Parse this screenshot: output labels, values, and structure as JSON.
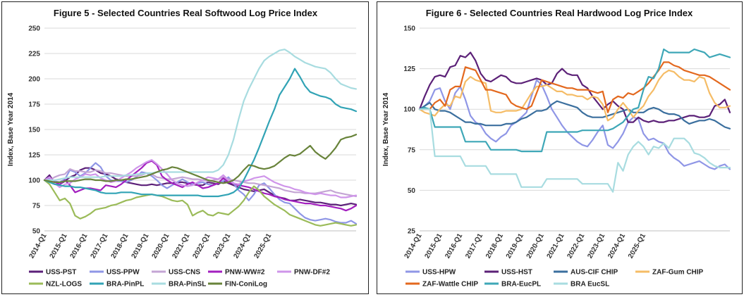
{
  "chart_data": [
    {
      "type": "line",
      "title": "Figure 5 - Selected Countries Real Softwood Log Price Index",
      "ylabel": "Index, Base Year 2014",
      "xlabel": "",
      "ylim": [
        50,
        250
      ],
      "yticks": [
        50,
        75,
        100,
        125,
        150,
        175,
        200,
        225,
        250
      ],
      "xticks": [
        "2014-Q1",
        "2015-Q1",
        "2016-Q1",
        "2017-Q1",
        "2018-Q1",
        "2019-Q1",
        "2020-Q1",
        "2021-Q1",
        "2022-Q1",
        "2023-Q1",
        "2024-Q1",
        "2025-Q1"
      ],
      "grid": "horizontal",
      "legend": "bottom",
      "series": [
        {
          "name": "USS-PST",
          "color": "#5b1f78",
          "values": [
            100,
            105,
            97,
            96,
            99,
            103,
            105,
            110,
            112,
            112,
            110,
            107,
            106,
            104,
            101,
            100,
            98,
            97,
            96,
            95,
            95,
            96,
            95,
            96,
            97,
            97,
            98,
            98,
            97,
            96,
            95,
            95,
            98,
            97,
            96,
            99,
            97,
            95,
            93,
            91,
            90,
            89,
            90,
            91,
            88,
            85,
            83,
            82,
            80,
            80,
            81,
            80,
            79,
            78,
            78,
            77,
            76,
            76,
            75,
            76,
            77,
            76
          ]
        },
        {
          "name": "USS-PPW",
          "color": "#8f96e6",
          "values": [
            100,
            101,
            99,
            98,
            101,
            110,
            108,
            104,
            107,
            112,
            117,
            113,
            104,
            100,
            99,
            99,
            98,
            100,
            103,
            108,
            107,
            104,
            100,
            95,
            92,
            95,
            98,
            101,
            98,
            96,
            97,
            98,
            96,
            95,
            97,
            99,
            103,
            97,
            90,
            86,
            80,
            86,
            95,
            97,
            92,
            86,
            81,
            78,
            77,
            72,
            67,
            63,
            61,
            60,
            61,
            62,
            61,
            59,
            58,
            58,
            60,
            57
          ]
        },
        {
          "name": "USS-CNS",
          "color": "#c4a5d4",
          "values": [
            100,
            100,
            103,
            105,
            106,
            111,
            109,
            109,
            108,
            108,
            110,
            109,
            107,
            107,
            106,
            105,
            104,
            104,
            104,
            105,
            107,
            106,
            103,
            102,
            101,
            101,
            102,
            103,
            102,
            101,
            101,
            100,
            99,
            100,
            101,
            103,
            101,
            100,
            99,
            98,
            97,
            97,
            96,
            95,
            94,
            93,
            92,
            90,
            89,
            88,
            88,
            87,
            87,
            87,
            88,
            89,
            90,
            88,
            87,
            86,
            85,
            84
          ]
        },
        {
          "name": "PNW-WW#2",
          "color": "#a31fbf",
          "values": [
            100,
            103,
            98,
            96,
            100,
            95,
            88,
            90,
            92,
            92,
            91,
            90,
            95,
            94,
            93,
            96,
            100,
            104,
            108,
            112,
            117,
            119,
            115,
            104,
            100,
            97,
            95,
            93,
            96,
            98,
            95,
            92,
            93,
            95,
            97,
            102,
            98,
            97,
            95,
            94,
            93,
            91,
            89,
            87,
            86,
            84,
            83,
            81,
            80,
            79,
            78,
            77,
            77,
            76,
            75,
            75,
            74,
            73,
            72,
            70,
            72,
            75
          ]
        },
        {
          "name": "PNW-DF#2",
          "color": "#cf95ea",
          "values": [
            100,
            103,
            97,
            93,
            96,
            97,
            101,
            103,
            106,
            105,
            106,
            102,
            100,
            98,
            99,
            102,
            105,
            108,
            112,
            115,
            118,
            120,
            116,
            111,
            106,
            100,
            97,
            95,
            94,
            95,
            98,
            100,
            103,
            102,
            101,
            105,
            100,
            97,
            96,
            99,
            100,
            102,
            103,
            104,
            101,
            98,
            96,
            94,
            93,
            91,
            90,
            88,
            87,
            86,
            87,
            86,
            85,
            85,
            83,
            83,
            84,
            85
          ]
        },
        {
          "name": "NZL-LOGS",
          "color": "#9bbb59",
          "values": [
            100,
            96,
            88,
            80,
            82,
            77,
            65,
            62,
            64,
            67,
            71,
            72,
            73,
            75,
            76,
            78,
            80,
            81,
            83,
            84,
            85,
            86,
            85,
            84,
            82,
            80,
            79,
            80,
            76,
            65,
            68,
            70,
            66,
            65,
            68,
            67,
            66,
            70,
            74,
            80,
            88,
            94,
            90,
            84,
            80,
            76,
            73,
            70,
            66,
            64,
            62,
            60,
            58,
            56,
            55,
            56,
            57,
            58,
            57,
            56,
            55,
            56
          ]
        },
        {
          "name": "BRA-PinPL",
          "color": "#31a3b5",
          "values": [
            100,
            98,
            96,
            95,
            94,
            94,
            93,
            93,
            92,
            91,
            90,
            88,
            87,
            87,
            87,
            88,
            88,
            88,
            87,
            86,
            86,
            86,
            85,
            85,
            85,
            85,
            85,
            85,
            85,
            85,
            85,
            84,
            84,
            84,
            84,
            85,
            86,
            88,
            92,
            100,
            110,
            120,
            132,
            145,
            158,
            170,
            184,
            192,
            200,
            210,
            202,
            193,
            187,
            185,
            183,
            182,
            180,
            175,
            172,
            171,
            170,
            168
          ]
        },
        {
          "name": "BRA-PinSL",
          "color": "#a8dce0",
          "values": [
            100,
            100,
            100,
            101,
            102,
            103,
            103,
            103,
            103,
            103,
            103,
            103,
            104,
            104,
            104,
            104,
            105,
            105,
            106,
            106,
            107,
            107,
            108,
            108,
            108,
            108,
            108,
            108,
            108,
            108,
            108,
            108,
            108,
            108,
            110,
            115,
            125,
            140,
            160,
            178,
            190,
            200,
            210,
            218,
            222,
            225,
            228,
            229,
            226,
            222,
            219,
            216,
            214,
            212,
            211,
            210,
            206,
            200,
            195,
            193,
            191,
            190
          ]
        },
        {
          "name": "FIN-ConiLog",
          "color": "#68833a",
          "values": [
            100,
            99,
            98,
            98,
            99,
            99,
            99,
            100,
            101,
            101,
            100,
            100,
            99,
            99,
            100,
            100,
            101,
            101,
            102,
            103,
            104,
            106,
            108,
            110,
            111,
            113,
            112,
            110,
            108,
            106,
            104,
            102,
            100,
            99,
            98,
            97,
            98,
            100,
            104,
            110,
            115,
            114,
            112,
            111,
            112,
            114,
            118,
            122,
            125,
            124,
            126,
            130,
            134,
            128,
            124,
            121,
            126,
            132,
            140,
            142,
            143,
            145
          ]
        }
      ]
    },
    {
      "type": "line",
      "title": "Figure 6 - Selected Countries Real Hardwood Log Price Index",
      "ylabel": "Index, Base Year 2014",
      "xlabel": "",
      "ylim": [
        25,
        150
      ],
      "yticks": [
        25,
        50,
        75,
        100,
        125,
        150
      ],
      "xticks": [
        "2014-Q1",
        "2015-Q1",
        "2016-Q1",
        "2017-Q1",
        "2018-Q1",
        "2019-Q1",
        "2020-Q1",
        "2021-Q1",
        "2022-Q1",
        "2023-Q1",
        "2024-Q1",
        "2025-Q1"
      ],
      "grid": "horizontal",
      "legend": "bottom",
      "series": [
        {
          "name": "USS-HPW",
          "color": "#8f96e6",
          "values": [
            100,
            102,
            105,
            112,
            113,
            105,
            100,
            110,
            114,
            106,
            96,
            92,
            90,
            85,
            82,
            80,
            83,
            85,
            90,
            92,
            95,
            98,
            108,
            118,
            115,
            108,
            100,
            95,
            90,
            86,
            83,
            80,
            78,
            77,
            81,
            86,
            90,
            78,
            76,
            80,
            85,
            92,
            95,
            94,
            85,
            81,
            82,
            80,
            79,
            73,
            70,
            68,
            65,
            66,
            67,
            68,
            66,
            64,
            63,
            65,
            66,
            63
          ]
        },
        {
          "name": "USS-HST",
          "color": "#5b2077",
          "values": [
            100,
            108,
            115,
            120,
            121,
            120,
            126,
            127,
            133,
            132,
            135,
            130,
            122,
            118,
            117,
            119,
            121,
            120,
            117,
            116,
            116,
            117,
            118,
            119,
            118,
            115,
            116,
            122,
            125,
            122,
            121,
            121,
            115,
            113,
            108,
            104,
            100,
            103,
            105,
            102,
            100,
            92,
            92,
            95,
            93,
            92,
            93,
            92,
            92,
            93,
            93,
            94,
            95,
            96,
            96,
            95,
            95,
            96,
            102,
            103,
            106,
            98
          ]
        },
        {
          "name": "AUS-CIF CHIP",
          "color": "#3b6f9e",
          "values": [
            100,
            102,
            104,
            100,
            99,
            99,
            98,
            96,
            94,
            92,
            92,
            91,
            91,
            90,
            90,
            90,
            90,
            91,
            91,
            92,
            94,
            95,
            97,
            99,
            99,
            100,
            103,
            105,
            104,
            103,
            102,
            101,
            98,
            96,
            95,
            95,
            95,
            96,
            97,
            98,
            99,
            100,
            98,
            98,
            98,
            100,
            101,
            100,
            98,
            97,
            97,
            96,
            93,
            91,
            92,
            93,
            93,
            94,
            93,
            91,
            89,
            88
          ]
        },
        {
          "name": "ZAF-Gum CHIP",
          "color": "#f5bc66",
          "values": [
            100,
            98,
            97,
            96,
            100,
            103,
            102,
            108,
            107,
            117,
            120,
            118,
            117,
            116,
            99,
            98,
            98,
            99,
            99,
            99,
            100,
            105,
            110,
            114,
            114,
            115,
            113,
            111,
            111,
            109,
            109,
            108,
            108,
            106,
            108,
            107,
            103,
            93,
            95,
            100,
            104,
            100,
            95,
            99,
            102,
            108,
            112,
            118,
            122,
            124,
            123,
            120,
            118,
            118,
            117,
            120,
            119,
            110,
            104,
            101,
            101,
            102
          ]
        },
        {
          "name": "ZAF-Wattle CHIP",
          "color": "#e3681e",
          "values": [
            100,
            100,
            100,
            104,
            106,
            102,
            112,
            114,
            114,
            126,
            125,
            124,
            118,
            112,
            112,
            111,
            110,
            109,
            104,
            102,
            101,
            100,
            102,
            110,
            118,
            117,
            116,
            115,
            114,
            113,
            113,
            112,
            112,
            112,
            111,
            110,
            111,
            98,
            106,
            108,
            107,
            110,
            109,
            111,
            113,
            116,
            120,
            124,
            129,
            129,
            127,
            126,
            124,
            123,
            122,
            121,
            121,
            120,
            118,
            116,
            114,
            112
          ]
        },
        {
          "name": "BRA-EucPL",
          "color": "#3ea7b7",
          "values": [
            100,
            101,
            100,
            89,
            89,
            89,
            89,
            89,
            89,
            80,
            80,
            80,
            80,
            80,
            75,
            75,
            75,
            75,
            75,
            75,
            74,
            74,
            74,
            74,
            74,
            86,
            86,
            86,
            86,
            86,
            86,
            86,
            87,
            87,
            87,
            87,
            87,
            87,
            88,
            90,
            92,
            96,
            100,
            101,
            112,
            120,
            119,
            125,
            137,
            135,
            135,
            135,
            135,
            135,
            137,
            136,
            135,
            132,
            133,
            134,
            133,
            132
          ]
        },
        {
          "name": "BRA EucSL",
          "color": "#a8dce0",
          "values": [
            100,
            100,
            100,
            71,
            71,
            71,
            71,
            71,
            71,
            65,
            65,
            65,
            65,
            65,
            60,
            60,
            60,
            60,
            60,
            60,
            52,
            52,
            52,
            52,
            52,
            57,
            57,
            57,
            57,
            57,
            57,
            57,
            54,
            54,
            54,
            54,
            54,
            54,
            49,
            67,
            62,
            72,
            77,
            80,
            77,
            72,
            77,
            76,
            79,
            76,
            82,
            82,
            82,
            79,
            73,
            72,
            70,
            67,
            65,
            64,
            64,
            64
          ]
        }
      ]
    }
  ]
}
